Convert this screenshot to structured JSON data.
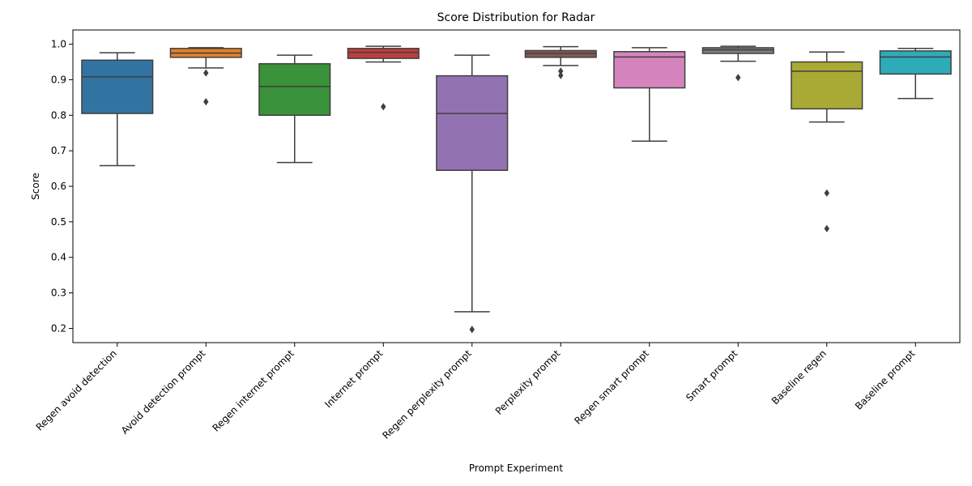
{
  "chart_data": {
    "type": "box",
    "title": "Score Distribution for Radar",
    "xlabel": "Prompt Experiment",
    "ylabel": "Score",
    "ylim": [
      0.16,
      1.04
    ],
    "yticks": [
      0.2,
      0.3,
      0.4,
      0.5,
      0.6,
      0.7,
      0.8,
      0.9,
      1.0
    ],
    "ytick_labels": [
      "0.2",
      "0.3",
      "0.4",
      "0.5",
      "0.6",
      "0.7",
      "0.8",
      "0.9",
      "1.0"
    ],
    "grid": false,
    "categories": [
      "Regen avoid detection",
      "Avoid detection prompt",
      "Regen internet prompt",
      "Internet prompt",
      "Regen perplexity prompt",
      "Perplexity prompt",
      "Regen smart prompt",
      "Smart prompt",
      "Baseline regen",
      "Baseline prompt"
    ],
    "boxes": [
      {
        "color": "#3274a1",
        "whisker_low": 0.658,
        "q1": 0.805,
        "median": 0.908,
        "q3": 0.955,
        "whisker_high": 0.976,
        "fliers": []
      },
      {
        "color": "#e1812c",
        "whisker_low": 0.933,
        "q1": 0.963,
        "median": 0.975,
        "q3": 0.988,
        "whisker_high": 0.99,
        "fliers": [
          0.919,
          0.838
        ]
      },
      {
        "color": "#3a923a",
        "whisker_low": 0.667,
        "q1": 0.8,
        "median": 0.881,
        "q3": 0.945,
        "whisker_high": 0.969,
        "fliers": []
      },
      {
        "color": "#c03d3e",
        "whisker_low": 0.95,
        "q1": 0.96,
        "median": 0.977,
        "q3": 0.988,
        "whisker_high": 0.994,
        "fliers": [
          0.824
        ]
      },
      {
        "color": "#9372b2",
        "whisker_low": 0.247,
        "q1": 0.645,
        "median": 0.805,
        "q3": 0.911,
        "whisker_high": 0.969,
        "fliers": [
          0.197
        ]
      },
      {
        "color": "#845b53",
        "whisker_low": 0.94,
        "q1": 0.963,
        "median": 0.974,
        "q3": 0.982,
        "whisker_high": 0.993,
        "fliers": [
          0.924,
          0.912
        ]
      },
      {
        "color": "#d684bd",
        "whisker_low": 0.727,
        "q1": 0.877,
        "median": 0.964,
        "q3": 0.979,
        "whisker_high": 0.99,
        "fliers": []
      },
      {
        "color": "#7f7f7f",
        "whisker_low": 0.952,
        "q1": 0.974,
        "median": 0.984,
        "q3": 0.99,
        "whisker_high": 0.994,
        "fliers": [
          0.906
        ]
      },
      {
        "color": "#a9aa35",
        "whisker_low": 0.781,
        "q1": 0.818,
        "median": 0.924,
        "q3": 0.95,
        "whisker_high": 0.978,
        "fliers": [
          0.581,
          0.481
        ]
      },
      {
        "color": "#2eabb8",
        "whisker_low": 0.847,
        "q1": 0.916,
        "median": 0.964,
        "q3": 0.981,
        "whisker_high": 0.988,
        "fliers": []
      }
    ]
  }
}
